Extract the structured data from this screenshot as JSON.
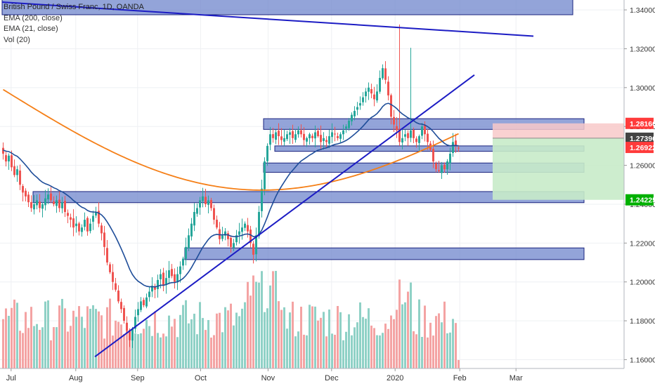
{
  "legend": {
    "title": "British Pound / Swiss Franc, 1D, OANDA",
    "ema200": "EMA (200, close)",
    "ema21": "EMA (21, close)",
    "vol": "Vol (20)"
  },
  "colors": {
    "up": "#26a69a",
    "down": "#ef5350",
    "vol_up": "#8fd1c6",
    "vol_down": "#f4a3a3",
    "ema200": "#f57f17",
    "ema21": "#1e4d99",
    "zone_fill": "#6f86cc",
    "zone_edge": "#1a237e",
    "trend": "#1c1cc4",
    "stop_fill": "#f8c9c9",
    "target_fill": "#c8ebc9"
  },
  "chart_data": {
    "type": "candlestick",
    "symbol": "British Pound / Swiss Franc",
    "timeframe": "1D",
    "source": "OANDA",
    "x_axis": {
      "labels": [
        "Jul",
        "Aug",
        "Sep",
        "Oct",
        "Nov",
        "Dec",
        "2020",
        "Feb",
        "Mar"
      ],
      "positions": [
        3.2,
        26.2,
        48.2,
        70.6,
        94.6,
        117.2,
        139.8,
        162.8,
        182.8
      ]
    },
    "y_axis": {
      "range": [
        1.158,
        1.344
      ],
      "labels": [
        "1.34000",
        "1.32000",
        "1.30000",
        "1.28000",
        "1.26000",
        "1.24000",
        "1.22000",
        "1.20000",
        "1.18000",
        "1.16000"
      ],
      "values": [
        1.34,
        1.32,
        1.3,
        1.28,
        1.26,
        1.24,
        1.22,
        1.2,
        1.18,
        1.16
      ]
    },
    "markers": [
      {
        "label": "1.28160",
        "value": 1.2816,
        "color": "#ff3b3b"
      },
      {
        "label": "1.27396",
        "value": 1.27396,
        "color": "#444444"
      },
      {
        "label": "1.26922",
        "value": 1.26922,
        "color": "#ff3b3b"
      },
      {
        "label": "1.24225",
        "value": 1.24225,
        "color": "#00b000"
      }
    ],
    "ohlc_closes": [
      1.266,
      1.262,
      1.265,
      1.259,
      1.255,
      1.258,
      1.25,
      1.246,
      1.244,
      1.241,
      1.238,
      1.24,
      1.242,
      1.238,
      1.24,
      1.243,
      1.245,
      1.242,
      1.24,
      1.242,
      1.238,
      1.241,
      1.236,
      1.234,
      1.232,
      1.228,
      1.23,
      1.226,
      1.228,
      1.232,
      1.226,
      1.23,
      1.234,
      1.236,
      1.23,
      1.225,
      1.218,
      1.21,
      1.205,
      1.2,
      1.196,
      1.19,
      1.186,
      1.18,
      1.175,
      1.17,
      1.176,
      1.182,
      1.186,
      1.19,
      1.188,
      1.192,
      1.195,
      1.198,
      1.196,
      1.201,
      1.204,
      1.198,
      1.202,
      1.206,
      1.203,
      1.2,
      1.204,
      1.208,
      1.212,
      1.218,
      1.224,
      1.23,
      1.236,
      1.238,
      1.242,
      1.244,
      1.24,
      1.242,
      1.238,
      1.232,
      1.228,
      1.222,
      1.224,
      1.226,
      1.222,
      1.218,
      1.22,
      1.224,
      1.226,
      1.228,
      1.23,
      1.226,
      1.22,
      1.214,
      1.224,
      1.236,
      1.248,
      1.262,
      1.27,
      1.276,
      1.274,
      1.277,
      1.275,
      1.273,
      1.274,
      1.276,
      1.277,
      1.274,
      1.276,
      1.278,
      1.276,
      1.273,
      1.274,
      1.276,
      1.274,
      1.277,
      1.275,
      1.272,
      1.274,
      1.272,
      1.275,
      1.277,
      1.276,
      1.274,
      1.276,
      1.278,
      1.28,
      1.283,
      1.286,
      1.288,
      1.29,
      1.292,
      1.295,
      1.298,
      1.3,
      1.297,
      1.294,
      1.298,
      1.305,
      1.31,
      1.304,
      1.296,
      1.285,
      1.281,
      1.278,
      1.272,
      1.274,
      1.276,
      1.274,
      1.278,
      1.274,
      1.272,
      1.275,
      1.28,
      1.276,
      1.272,
      1.268,
      1.262,
      1.258,
      1.257,
      1.26,
      1.258,
      1.262,
      1.266,
      1.272,
      1.27,
      1.269
    ],
    "ema200": {
      "start": 1.299,
      "end": 1.266
    },
    "ema21": "21-period exponential moving average of close",
    "support_resistance_zones": [
      {
        "low": 1.3375,
        "high": 1.346
      },
      {
        "low": 1.2785,
        "high": 1.284
      },
      {
        "low": 1.2672,
        "high": 1.27
      },
      {
        "low": 1.2564,
        "high": 1.2612
      },
      {
        "low": 1.2408,
        "high": 1.2465
      },
      {
        "low": 1.2115,
        "high": 1.2175
      }
    ],
    "trend_lines": [
      {
        "x1": 0.0,
        "y1": 1.344,
        "x2": 189.0,
        "y2": 1.3265
      },
      {
        "x1": 33.0,
        "y1": 1.1615,
        "x2": 168.0,
        "y2": 1.3065
      }
    ],
    "position": {
      "entry": 1.27396,
      "stop": 1.2816,
      "target": 1.24225
    },
    "volume": "Vol (20) histogram, colour follows candle direction"
  }
}
